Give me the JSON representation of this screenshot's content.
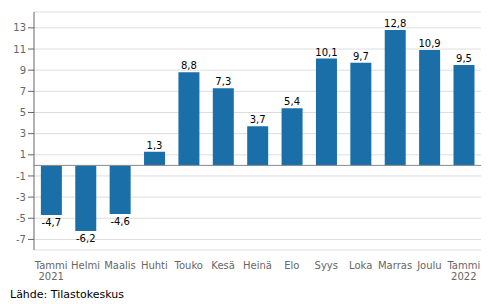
{
  "chart_data": {
    "type": "bar",
    "categories": [
      "Tammi\n2021",
      "Helmi",
      "Maalis",
      "Huhti",
      "Touko",
      "Kesä",
      "Heinä",
      "Elo",
      "Syys",
      "Loka",
      "Marras",
      "Joulu",
      "Tammi\n2022"
    ],
    "values": [
      -4.7,
      -6.2,
      -4.6,
      1.3,
      8.8,
      7.3,
      3.7,
      5.4,
      10.1,
      9.7,
      12.8,
      10.9,
      9.5
    ],
    "value_labels": [
      "-4,7",
      "-6,2",
      "-4,6",
      "1,3",
      "8,8",
      "7,3",
      "3,7",
      "5,4",
      "10,1",
      "9,7",
      "12,8",
      "10,9",
      "9,5"
    ],
    "color": "#1a6fa8",
    "ylim": [
      -8,
      14.5
    ],
    "yticks": [
      -7,
      -5,
      -3,
      -1,
      1,
      3,
      5,
      7,
      9,
      11,
      13
    ],
    "grid": true,
    "data_labels": true,
    "annotation": "Lähde: Tilastokeskus"
  }
}
